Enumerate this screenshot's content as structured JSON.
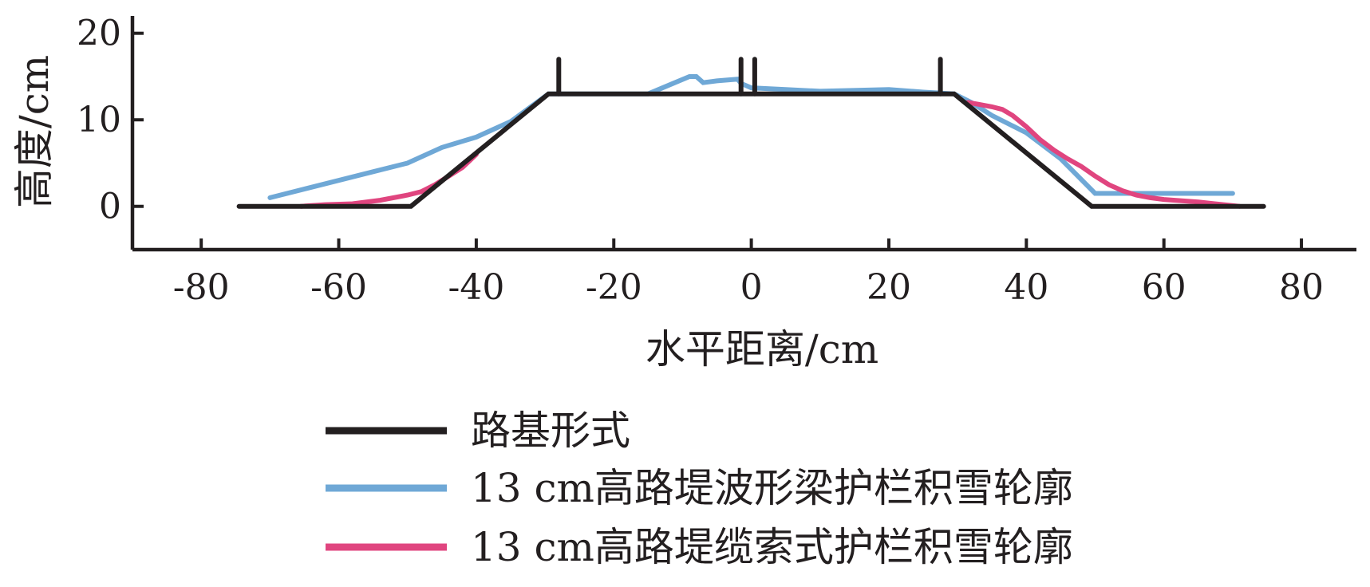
{
  "chart_data": {
    "type": "line",
    "xlabel": "水平距离/cm",
    "ylabel": "高度/cm",
    "xlim": [
      -90,
      88
    ],
    "ylim": [
      -5,
      22
    ],
    "xticks": [
      -80,
      -60,
      -40,
      -20,
      0,
      20,
      40,
      60,
      80
    ],
    "yticks": [
      0,
      10,
      20
    ],
    "grid": false,
    "legend_position": "bottom",
    "series": [
      {
        "name": "路基形式",
        "color": "#231f20",
        "segments": [
          [
            [
              -74.5,
              0
            ],
            [
              -49.5,
              0
            ],
            [
              -29.5,
              13
            ],
            [
              29.5,
              13
            ],
            [
              49.5,
              0
            ],
            [
              74.5,
              0
            ]
          ],
          [
            [
              -28,
              13
            ],
            [
              -28,
              17
            ]
          ],
          [
            [
              -1.5,
              13
            ],
            [
              -1.5,
              17
            ]
          ],
          [
            [
              0.5,
              13
            ],
            [
              0.5,
              17
            ]
          ],
          [
            [
              27.5,
              13
            ],
            [
              27.5,
              17
            ]
          ]
        ]
      },
      {
        "name": "13 cm高路堤波形梁护栏积雪轮廓",
        "color": "#6fa8d6",
        "segments": [
          [
            [
              -70,
              1
            ],
            [
              -55,
              4
            ],
            [
              -50,
              5
            ],
            [
              -45,
              6.8
            ],
            [
              -40,
              8
            ],
            [
              -35,
              9.8
            ],
            [
              -29.5,
              13
            ],
            [
              -15,
              13
            ],
            [
              -12,
              14
            ],
            [
              -9,
              15
            ],
            [
              -8,
              15
            ],
            [
              -7,
              14.3
            ],
            [
              -5,
              14.5
            ],
            [
              -2,
              14.7
            ],
            [
              -1.5,
              14.2
            ],
            [
              0,
              13.7
            ],
            [
              5,
              13.5
            ],
            [
              10,
              13.3
            ],
            [
              20,
              13.5
            ],
            [
              25,
              13.2
            ],
            [
              29.5,
              13
            ],
            [
              32,
              12
            ],
            [
              35,
              10.5
            ],
            [
              40,
              8.5
            ],
            [
              45,
              5.5
            ],
            [
              50,
              1.5
            ],
            [
              55,
              1.5
            ],
            [
              70,
              1.5
            ]
          ]
        ]
      },
      {
        "name": "13 cm高路堤缆索式护栏积雪轮廓",
        "color": "#e0457f",
        "segments": [
          [
            [
              -65.5,
              0
            ],
            [
              -62,
              0.2
            ],
            [
              -58,
              0.3
            ],
            [
              -54,
              0.7
            ],
            [
              -50,
              1.3
            ],
            [
              -48,
              1.7
            ],
            [
              -46,
              2.5
            ],
            [
              -44,
              3.5
            ],
            [
              -42,
              4.5
            ],
            [
              -40,
              6
            ]
          ],
          [
            [
              31.5,
              12
            ],
            [
              33,
              11.8
            ],
            [
              35,
              11.5
            ],
            [
              36.5,
              11.2
            ],
            [
              38,
              10.5
            ],
            [
              40,
              9.2
            ],
            [
              42,
              7.7
            ],
            [
              44,
              6.5
            ],
            [
              46,
              5.5
            ],
            [
              48,
              4.6
            ],
            [
              50,
              3.5
            ],
            [
              52,
              2.5
            ],
            [
              54,
              1.8
            ],
            [
              56,
              1.3
            ],
            [
              58,
              1
            ],
            [
              60,
              0.8
            ],
            [
              65,
              0.5
            ],
            [
              71,
              0
            ]
          ]
        ]
      }
    ]
  }
}
